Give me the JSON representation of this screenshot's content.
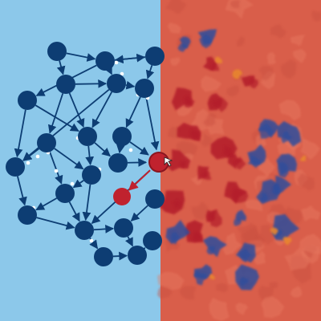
{
  "colors": {
    "left_background": "#8cc8ea",
    "right_background": "#d95e4a",
    "node_fill": "#0d3d73",
    "edge_stroke": "#0d3d73",
    "highlight_node_fill": "#c0222e",
    "highlight_edge_stroke": "#c0222e",
    "junction_dot": "#ffffff",
    "splotch_dark_red": "#b31e2c",
    "splotch_blue": "#2f4e9c",
    "splotch_orange": "#e8862f"
  },
  "panels": [
    {
      "name": "network-panel"
    },
    {
      "name": "texture-panel"
    }
  ],
  "graph": {
    "node_count": 24,
    "highlight_node_count": 2
  },
  "icons": {
    "cursor": "pointer-cursor-icon"
  }
}
